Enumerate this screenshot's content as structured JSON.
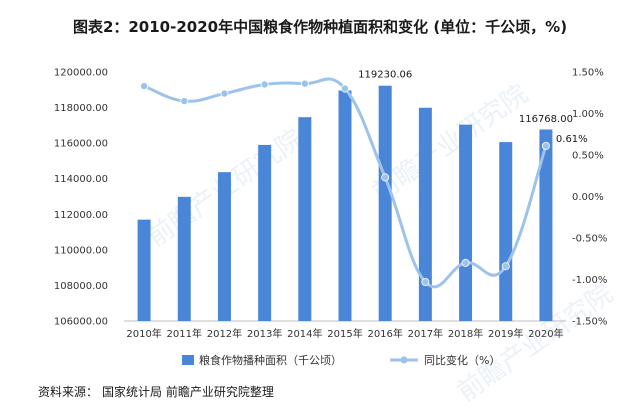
{
  "title": "图表2：2010-2020年中国粮食作物种植面积和变化 (单位：千公顷，%)",
  "source": {
    "label": "资料来源：",
    "value": "国家统计局 前瞻产业研究院整理"
  },
  "watermark": "前瞻产业研究院",
  "colors": {
    "bar": "#4a86d8",
    "line": "#9dc3ea",
    "axis": "#bfbfbf"
  },
  "chart_data": {
    "type": "bar",
    "categories": [
      "2010年",
      "2011年",
      "2012年",
      "2013年",
      "2014年",
      "2015年",
      "2016年",
      "2017年",
      "2018年",
      "2019年",
      "2020年"
    ],
    "series": [
      {
        "name": "粮食作物播种面积（千公顷）",
        "type": "bar",
        "axis": "left",
        "values": [
          111700,
          112980,
          114370,
          115900,
          117460,
          118960,
          119230.06,
          117990,
          117040,
          116060,
          116768.0
        ]
      },
      {
        "name": "同比变化（%）",
        "type": "line",
        "axis": "right",
        "values": [
          1.33,
          1.15,
          1.24,
          1.35,
          1.36,
          1.3,
          0.23,
          -1.03,
          -0.8,
          -0.84,
          0.61
        ]
      }
    ],
    "y_left": {
      "min": 106000,
      "max": 120000,
      "step": 2000,
      "tick_labels": [
        "106000.00",
        "108000.00",
        "110000.00",
        "112000.00",
        "114000.00",
        "116000.00",
        "118000.00",
        "120000.00"
      ]
    },
    "y_right": {
      "min": -1.5,
      "max": 1.5,
      "step": 0.5,
      "tick_labels": [
        "-1.50%",
        "-1.00%",
        "-0.50%",
        "0.00%",
        "0.50%",
        "1.00%",
        "1.50%"
      ]
    },
    "annotations": [
      {
        "series": 0,
        "index": 6,
        "text": "119230.06"
      },
      {
        "series": 0,
        "index": 10,
        "text": "116768.00"
      },
      {
        "series": 1,
        "index": 10,
        "text": "0.61%"
      }
    ],
    "legend_position": "bottom",
    "grid": false
  }
}
